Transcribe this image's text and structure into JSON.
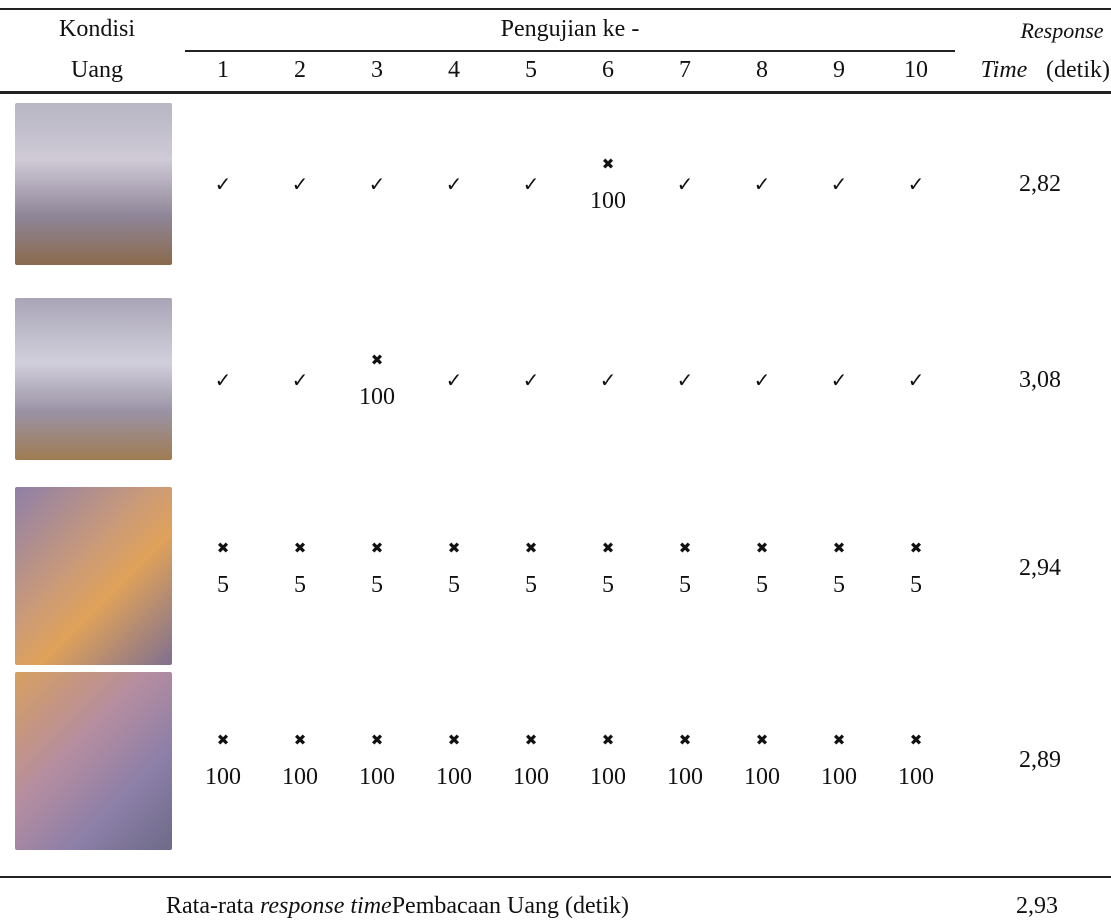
{
  "table": {
    "header": {
      "condition": [
        "Kondisi",
        "Uang"
      ],
      "group": "Pengujian ke -",
      "trials": [
        "1",
        "2",
        "3",
        "4",
        "5",
        "6",
        "7",
        "8",
        "9",
        "10"
      ],
      "response": [
        "Response",
        "Time",
        "(detik)"
      ]
    },
    "rows": [
      {
        "cells": [
          {
            "mark": "✓"
          },
          {
            "mark": "✓"
          },
          {
            "mark": "✓"
          },
          {
            "mark": "✓"
          },
          {
            "mark": "✓"
          },
          {
            "mark": "✖",
            "value": "100"
          },
          {
            "mark": "✓"
          },
          {
            "mark": "✓"
          },
          {
            "mark": "✓"
          },
          {
            "mark": "✓"
          }
        ],
        "response_time": "2,82"
      },
      {
        "cells": [
          {
            "mark": "✓"
          },
          {
            "mark": "✓"
          },
          {
            "mark": "✖",
            "value": "100"
          },
          {
            "mark": "✓"
          },
          {
            "mark": "✓"
          },
          {
            "mark": "✓"
          },
          {
            "mark": "✓"
          },
          {
            "mark": "✓"
          },
          {
            "mark": "✓"
          },
          {
            "mark": "✓"
          }
        ],
        "response_time": "3,08"
      },
      {
        "cells": [
          {
            "mark": "✖",
            "value": "5"
          },
          {
            "mark": "✖",
            "value": "5"
          },
          {
            "mark": "✖",
            "value": "5"
          },
          {
            "mark": "✖",
            "value": "5"
          },
          {
            "mark": "✖",
            "value": "5"
          },
          {
            "mark": "✖",
            "value": "5"
          },
          {
            "mark": "✖",
            "value": "5"
          },
          {
            "mark": "✖",
            "value": "5"
          },
          {
            "mark": "✖",
            "value": "5"
          },
          {
            "mark": "✖",
            "value": "5"
          }
        ],
        "response_time": "2,94"
      },
      {
        "cells": [
          {
            "mark": "✖",
            "value": "100"
          },
          {
            "mark": "✖",
            "value": "100"
          },
          {
            "mark": "✖",
            "value": "100"
          },
          {
            "mark": "✖",
            "value": "100"
          },
          {
            "mark": "✖",
            "value": "100"
          },
          {
            "mark": "✖",
            "value": "100"
          },
          {
            "mark": "✖",
            "value": "100"
          },
          {
            "mark": "✖",
            "value": "100"
          },
          {
            "mark": "✖",
            "value": "100"
          },
          {
            "mark": "✖",
            "value": "100"
          }
        ],
        "response_time": "2,89"
      }
    ],
    "footer": {
      "label": [
        "Rata-rata",
        "response time",
        "Pembacaan Uang (detik)"
      ],
      "value": "2,93"
    }
  }
}
